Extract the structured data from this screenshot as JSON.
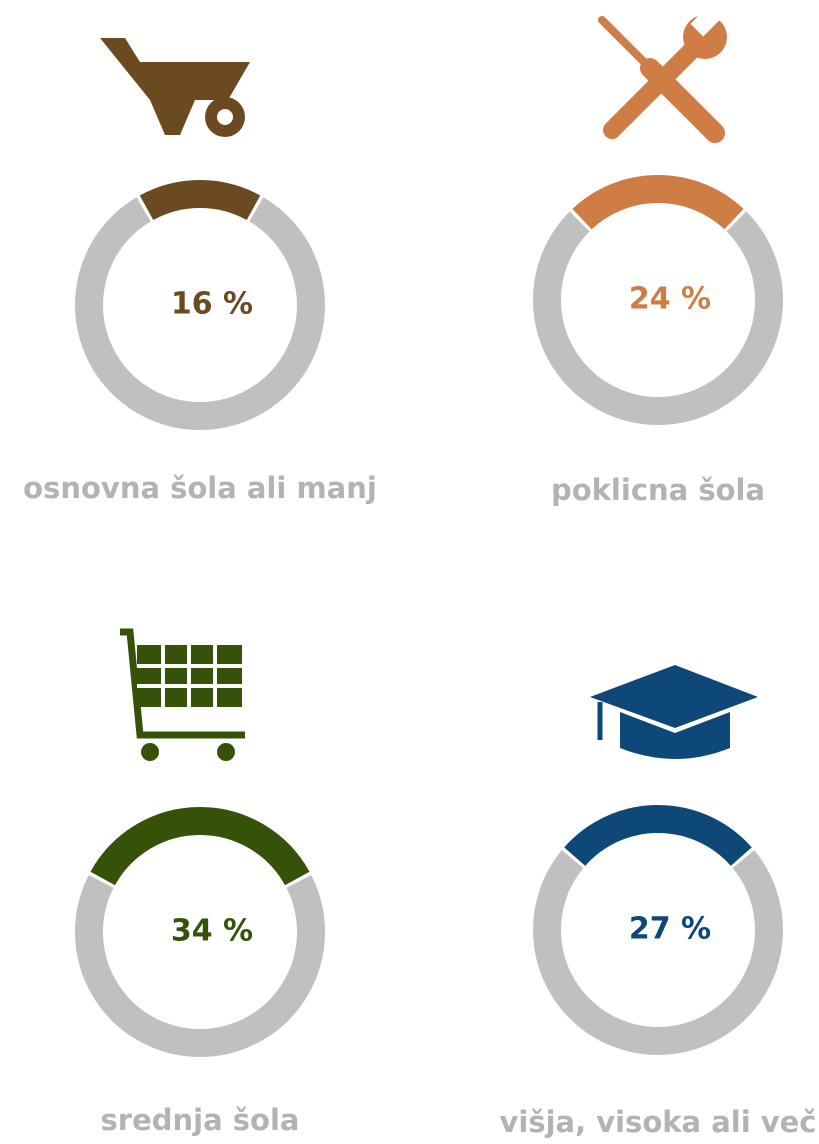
{
  "chart_data": [
    {
      "type": "donut",
      "categories": [
        "osnovna šola ali manj"
      ],
      "values": [
        16
      ],
      "value_labels": [
        "16 %"
      ],
      "color": "#6b4a22"
    },
    {
      "type": "donut",
      "categories": [
        "poklicna šola"
      ],
      "values": [
        24
      ],
      "value_labels": [
        "24 %"
      ],
      "color": "#d07d45"
    },
    {
      "type": "donut",
      "categories": [
        "srednja šola"
      ],
      "values": [
        34
      ],
      "value_labels": [
        "34 %"
      ],
      "color": "#355208"
    },
    {
      "type": "donut",
      "categories": [
        "višja, visoka ali več"
      ],
      "values": [
        27
      ],
      "value_labels": [
        "27 %"
      ],
      "color": "#0d4878"
    }
  ]
}
